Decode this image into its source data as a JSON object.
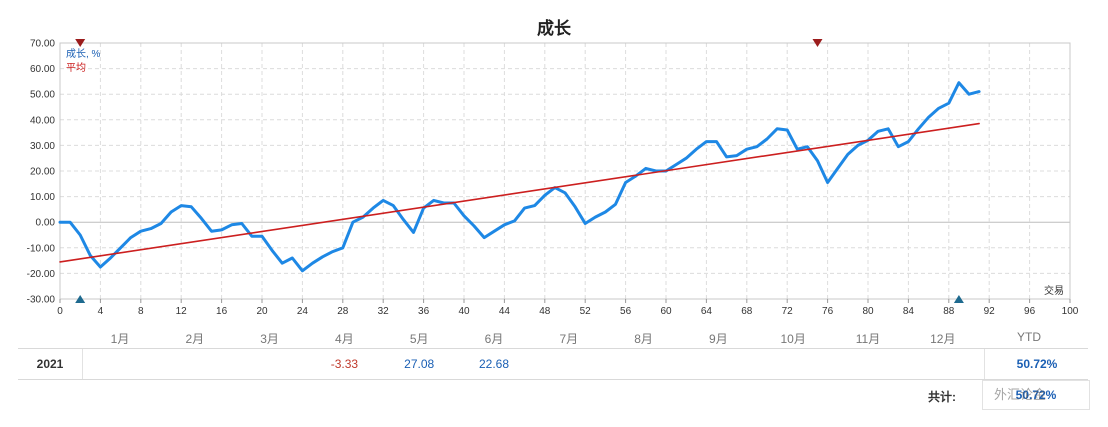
{
  "page": {
    "title": "成长"
  },
  "chart_data": {
    "type": "line",
    "title": "成长",
    "xlabel": "交易",
    "ylabel": "",
    "xlim": [
      0,
      100
    ],
    "ylim": [
      -30,
      70
    ],
    "x_ticks": [
      0,
      4,
      8,
      12,
      16,
      20,
      24,
      28,
      32,
      36,
      40,
      44,
      48,
      52,
      56,
      60,
      64,
      68,
      72,
      76,
      80,
      84,
      88,
      92,
      96,
      100
    ],
    "y_ticks": [
      -30,
      -20,
      -10,
      0,
      10,
      20,
      30,
      40,
      50,
      60,
      70
    ],
    "y_tick_labels": [
      "-30.00",
      "-20.00",
      "-10.00",
      "0.00",
      "10.00",
      "20.00",
      "30.00",
      "40.00",
      "50.00",
      "60.00",
      "70.00"
    ],
    "grid": true,
    "legend": [
      "成长, %",
      "平均"
    ],
    "series": [
      {
        "name": "成长, %",
        "color": "#1e88e5",
        "x": [
          0,
          1,
          2,
          3,
          4,
          5,
          6,
          7,
          8,
          9,
          10,
          11,
          12,
          13,
          14,
          15,
          16,
          17,
          18,
          19,
          20,
          21,
          22,
          23,
          24,
          25,
          26,
          27,
          28,
          29,
          30,
          31,
          32,
          33,
          34,
          35,
          36,
          37,
          38,
          39,
          40,
          41,
          42,
          43,
          44,
          45,
          46,
          47,
          48,
          49,
          50,
          51,
          52,
          53,
          54,
          55,
          56,
          57,
          58,
          59,
          60,
          61,
          62,
          63,
          64,
          65,
          66,
          67,
          68,
          69,
          70,
          71,
          72,
          73,
          74,
          75,
          76,
          77,
          78,
          79,
          80,
          81,
          82,
          83,
          84,
          85,
          86,
          87,
          88,
          89,
          90,
          91
        ],
        "y": [
          0,
          0,
          -5,
          -13,
          -17.5,
          -14,
          -10,
          -6,
          -3.5,
          -2.5,
          -0.5,
          4,
          6.5,
          6,
          1.5,
          -3.5,
          -3,
          -1,
          -0.5,
          -5.5,
          -5.5,
          -11,
          -16,
          -14,
          -19,
          -16,
          -13.5,
          -11.5,
          -10,
          0,
          2,
          5.5,
          8.5,
          6.5,
          1,
          -4,
          5.5,
          8.5,
          7.5,
          7.5,
          2.5,
          -1.5,
          -6,
          -3.5,
          -1,
          0.5,
          5.5,
          6.5,
          10.5,
          13.5,
          11.5,
          6,
          -0.5,
          2,
          4,
          7,
          15.5,
          18,
          21,
          20,
          20,
          22.5,
          25,
          28.5,
          31.5,
          31.5,
          25.5,
          26,
          28.5,
          29.5,
          32.5,
          36.5,
          36,
          28.5,
          29.5,
          24,
          15.5,
          21,
          26.5,
          30,
          32,
          35.5,
          36.5,
          29.5,
          31.5,
          36.5,
          41,
          44.5,
          46.5,
          54.5,
          50,
          51
        ]
      },
      {
        "name": "平均",
        "color": "#cc1f1f",
        "x": [
          0,
          91
        ],
        "y": [
          -15.5,
          38.5
        ]
      }
    ],
    "markers_top": [
      2,
      75
    ],
    "markers_bottom": [
      2,
      89
    ]
  },
  "table": {
    "months": [
      "1月",
      "2月",
      "3月",
      "4月",
      "5月",
      "6月",
      "7月",
      "8月",
      "9月",
      "10月",
      "11月",
      "12月"
    ],
    "ytd_label": "YTD",
    "rows": [
      {
        "year": "2021",
        "values": [
          {
            "month": "4月",
            "text": "-3.33",
            "sign": "neg"
          },
          {
            "month": "5月",
            "text": "27.08",
            "sign": "pos"
          },
          {
            "month": "6月",
            "text": "22.68",
            "sign": "pos"
          }
        ],
        "ytd": "50.72%"
      }
    ],
    "total_label": "共计:",
    "total_value": "50.72%"
  },
  "watermark": "外汇论金"
}
